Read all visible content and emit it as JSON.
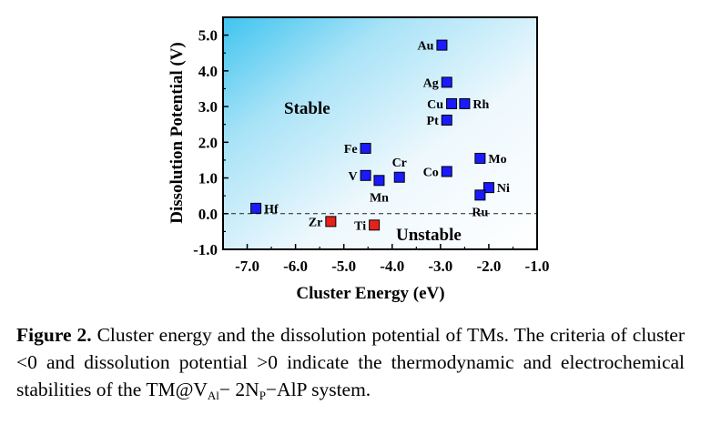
{
  "chart_data": {
    "type": "scatter",
    "title": "",
    "xlabel": "Cluster Energy (eV)",
    "ylabel": "Dissolution Potential (V)",
    "xlim": [
      -7.5,
      -1.0
    ],
    "ylim": [
      -1.0,
      5.5
    ],
    "xticks": [
      -7.0,
      -6.0,
      -5.0,
      -4.0,
      -3.0,
      -2.0,
      -1.0
    ],
    "yticks": [
      -1.0,
      0.0,
      1.0,
      2.0,
      3.0,
      4.0,
      5.0
    ],
    "xtick_labels": [
      "-7.0",
      "-6.0",
      "-5.0",
      "-4.0",
      "-3.0",
      "-2.0",
      "-1.0"
    ],
    "ytick_labels": [
      "-1.0",
      "0.0",
      "1.0",
      "2.0",
      "3.0",
      "4.0",
      "5.0"
    ],
    "grid": false,
    "reference_line": {
      "y": 0.0,
      "style": "dashed"
    },
    "background": "gradient: light blue at top-left fading to white at bottom-right",
    "region_labels": [
      "Stable",
      "Unstable"
    ],
    "colors": {
      "stable": "#1a1aff",
      "unstable": "#e8201a",
      "marker_edge": "#000000"
    },
    "points": [
      {
        "label": "Au",
        "x": -2.97,
        "y": 4.72,
        "group": "stable",
        "label_side": "left"
      },
      {
        "label": "Ag",
        "x": -2.87,
        "y": 3.68,
        "group": "stable",
        "label_side": "left"
      },
      {
        "label": "Cu",
        "x": -2.77,
        "y": 3.08,
        "group": "stable",
        "label_side": "left"
      },
      {
        "label": "Rh",
        "x": -2.5,
        "y": 3.08,
        "group": "stable",
        "label_side": "right"
      },
      {
        "label": "Pt",
        "x": -2.87,
        "y": 2.62,
        "group": "stable",
        "label_side": "left"
      },
      {
        "label": "Fe",
        "x": -4.55,
        "y": 1.83,
        "group": "stable",
        "label_side": "left"
      },
      {
        "label": "Cr",
        "x": -3.85,
        "y": 1.02,
        "group": "stable",
        "label_side": "above"
      },
      {
        "label": "V",
        "x": -4.55,
        "y": 1.07,
        "group": "stable",
        "label_side": "left"
      },
      {
        "label": "Mn",
        "x": -4.27,
        "y": 0.93,
        "group": "stable",
        "label_side": "below"
      },
      {
        "label": "Co",
        "x": -2.87,
        "y": 1.18,
        "group": "stable",
        "label_side": "left"
      },
      {
        "label": "Mo",
        "x": -2.18,
        "y": 1.55,
        "group": "stable",
        "label_side": "right"
      },
      {
        "label": "Ni",
        "x": -2.0,
        "y": 0.73,
        "group": "stable",
        "label_side": "right"
      },
      {
        "label": "Ru",
        "x": -2.18,
        "y": 0.52,
        "group": "stable",
        "label_side": "below"
      },
      {
        "label": "Hf",
        "x": -6.82,
        "y": 0.15,
        "group": "stable",
        "label_side": "right"
      },
      {
        "label": "Zr",
        "x": -5.27,
        "y": -0.22,
        "group": "unstable",
        "label_side": "left"
      },
      {
        "label": "Ti",
        "x": -4.37,
        "y": -0.32,
        "group": "unstable",
        "label_side": "left"
      }
    ]
  },
  "caption": {
    "label": "Figure 2.",
    "text_1": " Cluster energy and the dissolution potential of TMs. The criteria of cluster <0 and dissolution potential >0 indicate the thermodynamic and electrochemical stabilities of the TM@V",
    "sub_1": "Al",
    "text_2": "− 2N",
    "sub_2": "P",
    "text_3": "−AlP system."
  }
}
